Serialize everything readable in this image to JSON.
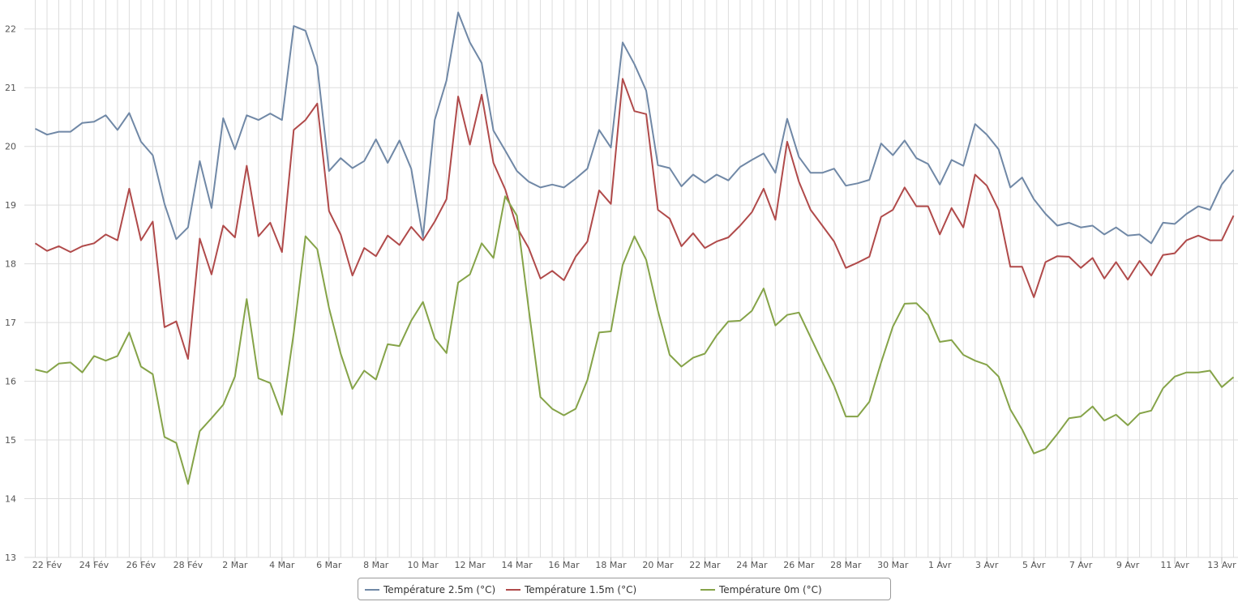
{
  "chart_data": {
    "type": "line",
    "title": "",
    "xlabel": "",
    "ylabel": "",
    "ylim": [
      13,
      22.3
    ],
    "yticks": [
      "13",
      "14",
      "15",
      "16",
      "17",
      "18",
      "19",
      "20",
      "21",
      "22"
    ],
    "xtick_labels": [
      "22 Fév",
      "24 Fév",
      "26 Fév",
      "28 Fév",
      "2 Mar",
      "4 Mar",
      "6 Mar",
      "8 Mar",
      "10 Mar",
      "12 Mar",
      "14 Mar",
      "16 Mar",
      "18 Mar",
      "20 Mar",
      "22 Mar",
      "24 Mar",
      "26 Mar",
      "28 Mar",
      "30 Mar",
      "1 Avr",
      "3 Avr",
      "5 Avr",
      "7 Avr",
      "9 Avr",
      "11 Avr",
      "13 Avr"
    ],
    "x_start": "21 Fév (12h)",
    "x_step": "12 h",
    "grid": true,
    "legend_placement": "bottom-center",
    "series": [
      {
        "name": "Température 2.5m (°C)",
        "color": "#7088a6",
        "values": [
          20.3,
          20.2,
          20.25,
          20.25,
          20.4,
          20.42,
          20.53,
          20.28,
          20.57,
          20.08,
          19.85,
          19.02,
          18.42,
          18.62,
          19.75,
          18.95,
          20.48,
          19.95,
          20.53,
          20.45,
          20.56,
          20.45,
          22.05,
          21.97,
          21.37,
          19.58,
          19.8,
          19.63,
          19.75,
          20.12,
          19.72,
          20.1,
          19.62,
          18.45,
          20.45,
          21.12,
          22.28,
          21.77,
          21.42,
          20.27,
          19.93,
          19.58,
          19.4,
          19.3,
          19.35,
          19.3,
          19.45,
          19.62,
          20.28,
          19.98,
          21.77,
          21.4,
          20.95,
          19.68,
          19.63,
          19.32,
          19.52,
          19.38,
          19.52,
          19.42,
          19.65,
          19.77,
          19.88,
          19.55,
          20.47,
          19.82,
          19.55,
          19.55,
          19.62,
          19.33,
          19.37,
          19.43,
          20.05,
          19.85,
          20.1,
          19.8,
          19.7,
          19.35,
          19.77,
          19.67,
          20.38,
          20.2,
          19.95,
          19.3,
          19.47,
          19.1,
          18.85,
          18.65,
          18.7,
          18.62,
          18.65,
          18.5,
          18.62,
          18.48,
          18.5,
          18.35,
          18.7,
          18.68,
          18.85,
          18.98,
          18.92,
          19.35,
          19.6
        ]
      },
      {
        "name": "Température 1.5m (°C)",
        "color": "#b04a4a",
        "values": [
          18.35,
          18.22,
          18.3,
          18.2,
          18.3,
          18.35,
          18.5,
          18.4,
          19.28,
          18.4,
          18.72,
          16.92,
          17.02,
          16.38,
          18.43,
          17.82,
          18.65,
          18.45,
          19.67,
          18.47,
          18.7,
          18.2,
          20.28,
          20.45,
          20.73,
          18.9,
          18.5,
          17.8,
          18.27,
          18.13,
          18.48,
          18.32,
          18.63,
          18.4,
          18.72,
          19.1,
          20.85,
          20.03,
          20.88,
          19.72,
          19.27,
          18.62,
          18.27,
          17.75,
          17.88,
          17.72,
          18.12,
          18.38,
          19.25,
          19.02,
          21.15,
          20.6,
          20.55,
          18.92,
          18.77,
          18.3,
          18.52,
          18.27,
          18.38,
          18.45,
          18.65,
          18.88,
          19.28,
          18.75,
          20.08,
          19.4,
          18.92,
          18.65,
          18.38,
          17.93,
          18.02,
          18.12,
          18.8,
          18.92,
          19.3,
          18.98,
          18.98,
          18.5,
          18.95,
          18.62,
          19.52,
          19.33,
          18.92,
          17.95,
          17.95,
          17.43,
          18.03,
          18.13,
          18.12,
          17.93,
          18.1,
          17.75,
          18.03,
          17.73,
          18.05,
          17.8,
          18.15,
          18.18,
          18.4,
          18.48,
          18.4,
          18.4,
          18.82
        ]
      },
      {
        "name": "Température 0m (°C)",
        "color": "#85a348",
        "values": [
          16.2,
          16.15,
          16.3,
          16.32,
          16.15,
          16.43,
          16.35,
          16.43,
          16.83,
          16.25,
          16.12,
          15.05,
          14.95,
          14.25,
          15.15,
          15.37,
          15.6,
          16.08,
          17.4,
          16.05,
          15.97,
          15.43,
          16.82,
          18.47,
          18.25,
          17.25,
          16.47,
          15.87,
          16.18,
          16.03,
          16.63,
          16.6,
          17.03,
          17.35,
          16.73,
          16.48,
          17.68,
          17.82,
          18.35,
          18.1,
          19.15,
          18.82,
          17.23,
          15.73,
          15.53,
          15.42,
          15.53,
          16.02,
          16.83,
          16.85,
          17.98,
          18.47,
          18.07,
          17.2,
          16.45,
          16.25,
          16.4,
          16.47,
          16.78,
          17.02,
          17.03,
          17.2,
          17.58,
          16.95,
          17.13,
          17.17,
          16.75,
          16.33,
          15.92,
          15.4,
          15.4,
          15.65,
          16.32,
          16.93,
          17.32,
          17.33,
          17.13,
          16.67,
          16.7,
          16.45,
          16.35,
          16.28,
          16.08,
          15.52,
          15.18,
          14.77,
          14.85,
          15.1,
          15.37,
          15.4,
          15.57,
          15.33,
          15.43,
          15.25,
          15.45,
          15.5,
          15.88,
          16.08,
          16.15,
          16.15,
          16.18,
          15.9,
          16.07
        ]
      }
    ]
  }
}
